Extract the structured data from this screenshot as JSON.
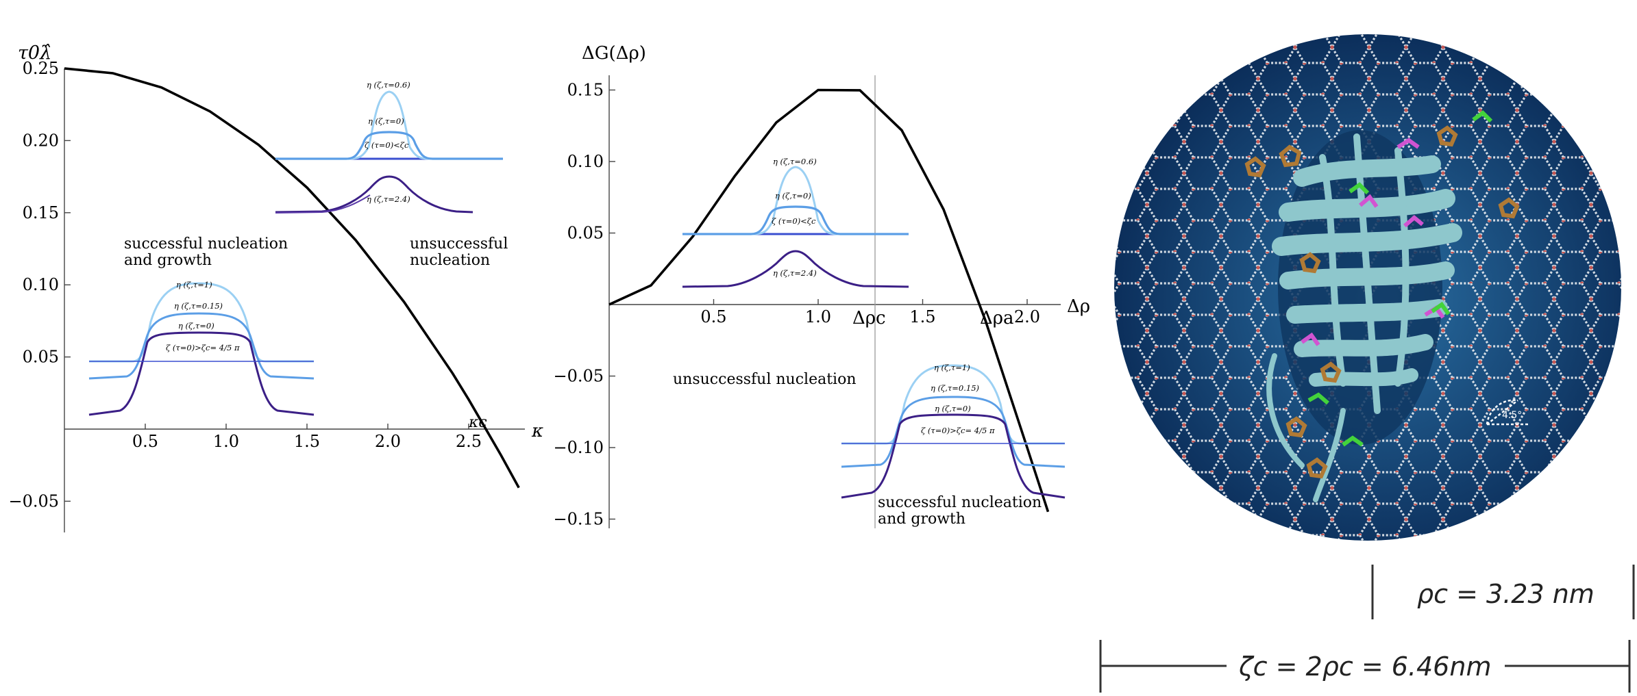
{
  "colors": {
    "main_curve": "#000000",
    "tau_1": "#9bd0f3",
    "tau_015": "#5b9ee6",
    "tau_0": "#3f62c8",
    "tau_06": "#9bd0f3",
    "tau_24": "#3b1f86",
    "flat_line": "#3a4fd0",
    "protein": "#8ec7cc",
    "sphere_bg_inner": "#2a6fa3",
    "sphere_bg_outer": "#0a2b57"
  },
  "chart_data": [
    {
      "type": "line",
      "ylabel": "τ0λ̂",
      "xlabel": "κ",
      "kappa_c_label": "κc",
      "xlim": [
        0,
        2.95
      ],
      "ylim": [
        -0.07,
        0.255
      ],
      "x_ticks": [
        0.5,
        1.0,
        1.5,
        2.0,
        2.5
      ],
      "x_tick_labels": [
        "0.5",
        "1.0",
        "1.5",
        "2.0",
        "2.5"
      ],
      "y_ticks": [
        -0.05,
        0.05,
        0.1,
        0.15,
        0.2,
        0.25
      ],
      "y_tick_labels": [
        "−0.05",
        "0.05",
        "0.10",
        "0.15",
        "0.20",
        "0.25"
      ],
      "series": [
        {
          "x": [
            0,
            0.3,
            0.6,
            0.9,
            1.2,
            1.5,
            1.8,
            2.1,
            2.4,
            2.5,
            2.7,
            2.81
          ],
          "y": [
            0.25,
            0.2467,
            0.2368,
            0.2202,
            0.1971,
            0.1674,
            0.1311,
            0.0882,
            0.0387,
            0.0205,
            -0.0181,
            -0.0406
          ]
        }
      ],
      "annotations": {
        "success_line1": "successful nucleation",
        "success_line2": "and growth",
        "unsuccess_line1": "unsuccessful",
        "unsuccess_line2": "nucleation"
      },
      "inset_top": {
        "labels": [
          "η (ζ,τ=0.6)",
          "η (ζ,τ=0)",
          "ζ (τ=0)<ζc",
          "η (ζ,τ=2.4)"
        ]
      },
      "inset_bottom": {
        "labels": [
          "η (ζ,τ=1)",
          "η (ζ,τ=0.15)",
          "η (ζ,τ=0)",
          "ζ (τ=0)>ζc= 4/5 π"
        ]
      }
    },
    {
      "type": "line",
      "ylabel": "ΔG(Δρ)",
      "xlabel": "Δρ",
      "xlim": [
        0,
        2.27
      ],
      "ylim": [
        -0.157,
        0.168
      ],
      "x_ticks": [
        0.5,
        1.0,
        1.5,
        2.0
      ],
      "x_tick_labels": [
        "0.5",
        "1.0",
        "1.5",
        "2.0"
      ],
      "special_ticks": [
        "Δρc",
        "Δρa"
      ],
      "y_ticks": [
        -0.15,
        -0.1,
        -0.05,
        0.05,
        0.1,
        0.15
      ],
      "y_tick_labels": [
        "−0.15",
        "−0.10",
        "−0.05",
        "0.05",
        "0.10",
        "0.15"
      ],
      "series": [
        {
          "x": [
            0,
            0.2,
            0.4,
            0.6,
            0.8,
            1.0,
            1.2,
            1.4,
            1.6,
            1.8,
            2.0,
            2.1
          ],
          "y": [
            0,
            0.0134,
            0.0475,
            0.0896,
            0.1273,
            0.15,
            0.1498,
            0.1218,
            0.0665,
            -0.011,
            -0.1,
            -0.1449
          ]
        }
      ],
      "annotations": {
        "unsuccess": "unsuccessful nucleation",
        "success_line1": "successful nucleation",
        "success_line2": "and growth"
      },
      "inset_top": {
        "labels": [
          "η (ζ,τ=0.6)",
          "η (ζ,τ=0)",
          "ζ (τ=0)<ζc",
          "η (ζ,τ=2.4)"
        ]
      },
      "inset_bottom": {
        "labels": [
          "η (ζ,τ=1)",
          "η (ζ,τ=0.15)",
          "η (ζ,τ=0)",
          "ζ (τ=0)>ζc= 4/5 π"
        ]
      }
    }
  ],
  "image_panel": {
    "angle_label": "4.5°",
    "rho_label": "ρc = 3.23  nm",
    "zeta_label": "ζc = 2ρc = 6.46nm"
  }
}
